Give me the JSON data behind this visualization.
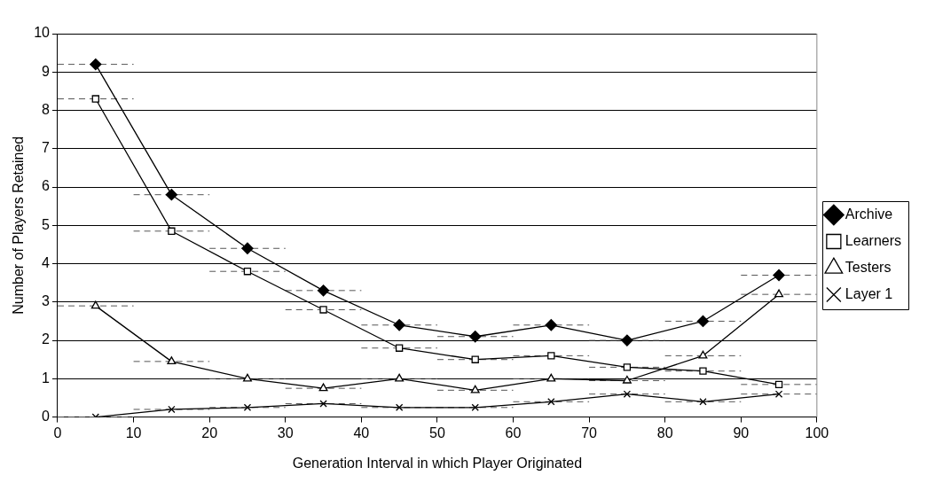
{
  "chart_data": {
    "type": "line",
    "xlabel": "Generation Interval in which Player Originated",
    "ylabel": "Number of Players Retained",
    "x": [
      5,
      15,
      25,
      35,
      45,
      55,
      65,
      75,
      85,
      95
    ],
    "xlim": [
      0,
      100
    ],
    "xticks": [
      0,
      10,
      20,
      30,
      40,
      50,
      60,
      70,
      80,
      90,
      100
    ],
    "ylim": [
      0,
      10
    ],
    "yticks": [
      0,
      1,
      2,
      3,
      4,
      5,
      6,
      7,
      8,
      9,
      10
    ],
    "grid": "y",
    "legend": "right",
    "series": [
      {
        "name": "Archive",
        "color": "#000000",
        "marker": "diamond",
        "values": [
          9.2,
          5.8,
          4.4,
          3.3,
          2.4,
          2.1,
          2.4,
          2.0,
          2.5,
          3.7
        ],
        "xerrors": [
          5,
          5,
          5,
          5,
          5,
          5,
          5,
          5,
          5,
          5
        ]
      },
      {
        "name": "Learners",
        "color": "#000000",
        "marker": "square",
        "values": [
          8.3,
          4.85,
          3.8,
          2.8,
          1.8,
          1.5,
          1.6,
          1.3,
          1.2,
          0.85
        ],
        "xerrors": [
          5,
          5,
          5,
          5,
          5,
          5,
          5,
          5,
          5,
          5
        ]
      },
      {
        "name": "Testers",
        "color": "#000000",
        "marker": "triangle",
        "values": [
          2.9,
          1.45,
          1.0,
          0.75,
          1.0,
          0.7,
          1.0,
          0.95,
          1.6,
          3.2
        ],
        "xerrors": [
          5,
          5,
          5,
          5,
          5,
          5,
          5,
          5,
          5,
          5
        ]
      },
      {
        "name": "Layer 1",
        "color": "#000000",
        "marker": "cross",
        "values": [
          0,
          0.2,
          0.25,
          0.35,
          0.25,
          0.25,
          0.4,
          0.6,
          0.4,
          0.6
        ],
        "xerrors": [
          5,
          5,
          5,
          5,
          5,
          5,
          5,
          5,
          5,
          5
        ]
      }
    ]
  }
}
